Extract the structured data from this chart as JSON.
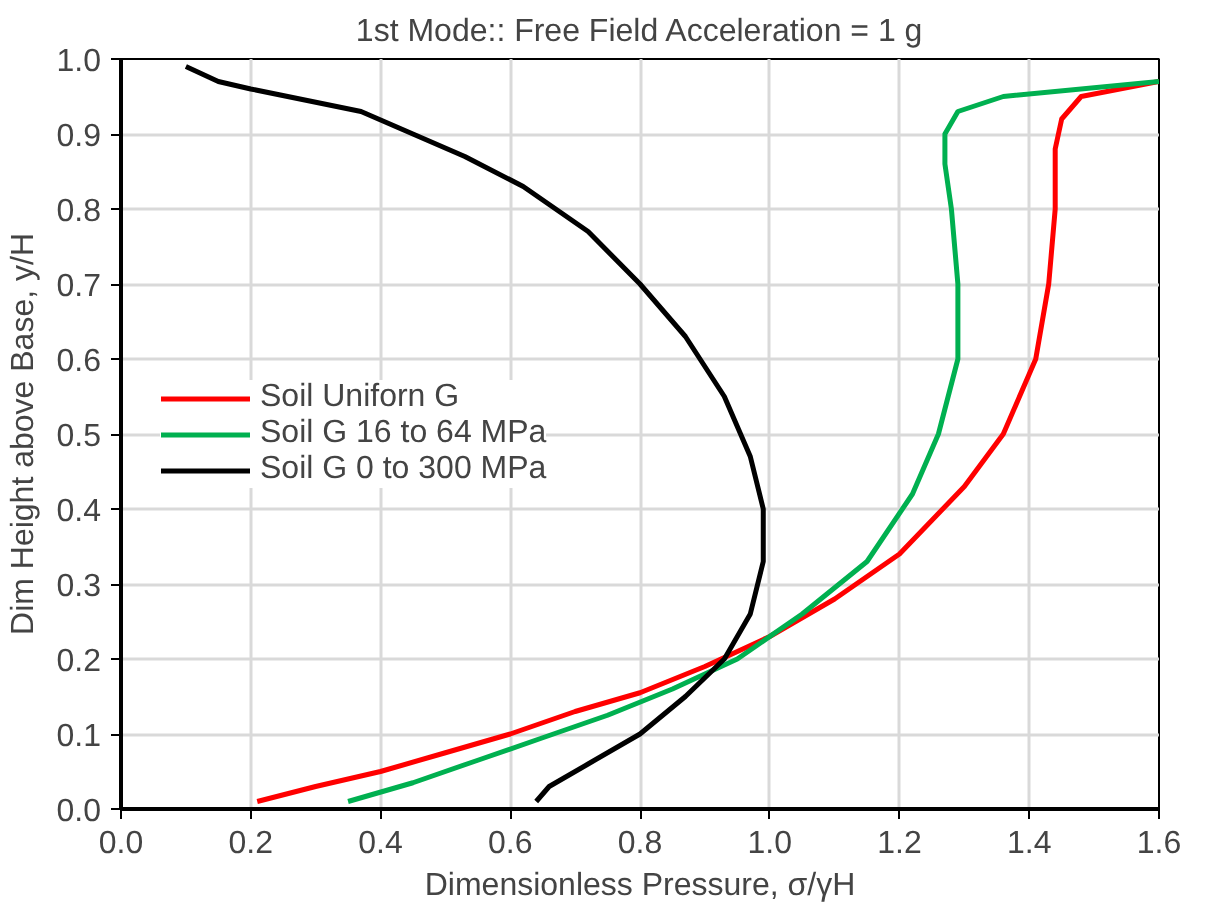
{
  "chart_data": {
    "type": "line",
    "title": "1st Mode:: Free Field Acceleration = 1 g",
    "xlabel": "Dimensionless Pressure, σ/γH",
    "ylabel": "Dim Height above Base, y/H",
    "xlim": [
      0,
      1.6
    ],
    "ylim": [
      0,
      1.0
    ],
    "xticks": [
      {
        "value": 0,
        "label": "0.0"
      },
      {
        "value": 0.2,
        "label": "0.2"
      },
      {
        "value": 0.4,
        "label": "0.4"
      },
      {
        "value": 0.6,
        "label": "0.6"
      },
      {
        "value": 0.8,
        "label": "0.8"
      },
      {
        "value": 1.0,
        "label": "1.0"
      },
      {
        "value": 1.2,
        "label": "1.2"
      },
      {
        "value": 1.4,
        "label": "1.4"
      },
      {
        "value": 1.6,
        "label": "1.6"
      }
    ],
    "yticks": [
      {
        "value": 0,
        "label": "0.0"
      },
      {
        "value": 0.1,
        "label": "0.1"
      },
      {
        "value": 0.2,
        "label": "0.2"
      },
      {
        "value": 0.3,
        "label": "0.3"
      },
      {
        "value": 0.4,
        "label": "0.4"
      },
      {
        "value": 0.5,
        "label": "0.5"
      },
      {
        "value": 0.6,
        "label": "0.6"
      },
      {
        "value": 0.7,
        "label": "0.7"
      },
      {
        "value": 0.8,
        "label": "0.8"
      },
      {
        "value": 0.9,
        "label": "0.9"
      },
      {
        "value": 1.0,
        "label": "1.0"
      }
    ],
    "grid": true,
    "legend": "left",
    "marker": "none",
    "line_style": "solid",
    "series": [
      {
        "name": "Soil Uniforn G",
        "color": "#ff0000",
        "x": [
          0.21,
          0.3,
          0.4,
          0.5,
          0.6,
          0.7,
          0.8,
          0.9,
          1.0,
          1.1,
          1.2,
          1.3,
          1.36,
          1.41,
          1.43,
          1.44,
          1.44,
          1.45,
          1.48,
          1.6
        ],
        "values": [
          0.01,
          0.03,
          0.05,
          0.075,
          0.1,
          0.13,
          0.155,
          0.19,
          0.23,
          0.28,
          0.34,
          0.43,
          0.5,
          0.6,
          0.7,
          0.8,
          0.88,
          0.92,
          0.95,
          0.97
        ]
      },
      {
        "name": "Soil G 16 to 64 MPa",
        "color": "#00b050",
        "x": [
          0.35,
          0.45,
          0.55,
          0.65,
          0.75,
          0.85,
          0.95,
          1.05,
          1.15,
          1.22,
          1.26,
          1.29,
          1.29,
          1.28,
          1.27,
          1.27,
          1.29,
          1.36,
          1.6
        ],
        "values": [
          0.01,
          0.035,
          0.065,
          0.095,
          0.125,
          0.16,
          0.2,
          0.26,
          0.33,
          0.42,
          0.5,
          0.6,
          0.7,
          0.8,
          0.86,
          0.9,
          0.93,
          0.95,
          0.97
        ]
      },
      {
        "name": "Soil G 0 to 300 MPa",
        "color": "#000000",
        "x": [
          0.64,
          0.66,
          0.72,
          0.8,
          0.87,
          0.93,
          0.97,
          0.99,
          0.99,
          0.97,
          0.93,
          0.87,
          0.8,
          0.72,
          0.62,
          0.53,
          0.45,
          0.37,
          0.2,
          0.15,
          0.1
        ],
        "values": [
          0.01,
          0.03,
          0.06,
          0.1,
          0.15,
          0.2,
          0.26,
          0.33,
          0.4,
          0.47,
          0.55,
          0.63,
          0.7,
          0.77,
          0.83,
          0.87,
          0.9,
          0.93,
          0.96,
          0.97,
          0.99
        ]
      }
    ]
  }
}
